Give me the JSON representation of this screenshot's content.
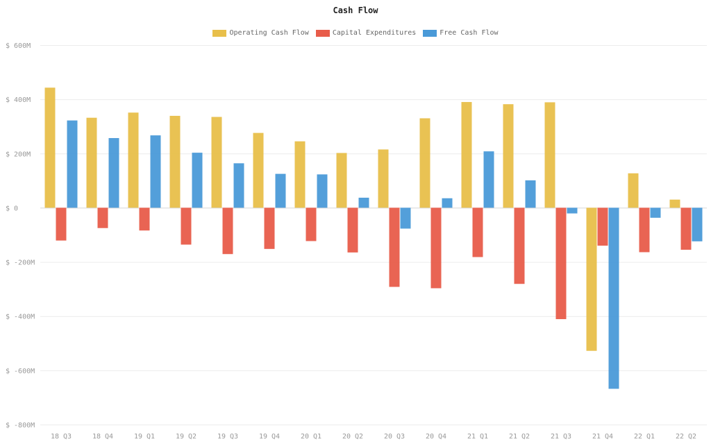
{
  "chart_data": {
    "type": "bar",
    "title": "Cash Flow",
    "xlabel": "",
    "ylabel": "",
    "categories": [
      "18 Q3",
      "18 Q4",
      "19 Q1",
      "19 Q2",
      "19 Q3",
      "19 Q4",
      "20 Q1",
      "20 Q2",
      "20 Q3",
      "20 Q4",
      "21 Q1",
      "21 Q2",
      "21 Q3",
      "21 Q4",
      "22 Q1",
      "22 Q2"
    ],
    "series": [
      {
        "name": "Operating Cash Flow",
        "color": "#e8bf4a",
        "values": [
          443,
          332,
          351,
          339,
          335,
          276,
          245,
          202,
          215,
          330,
          390,
          382,
          389,
          -528,
          127,
          30
        ]
      },
      {
        "name": "Capital Expenditures",
        "color": "#e85c4a",
        "values": [
          -121,
          -75,
          -84,
          -136,
          -171,
          -152,
          -123,
          -165,
          -292,
          -297,
          -182,
          -281,
          -411,
          -140,
          -164,
          -155
        ]
      },
      {
        "name": "Free Cash Flow",
        "color": "#4a9ad8",
        "values": [
          322,
          257,
          267,
          203,
          164,
          125,
          123,
          37,
          -77,
          35,
          208,
          101,
          -21,
          -668,
          -37,
          -124
        ]
      }
    ],
    "ylim": [
      -800,
      600
    ],
    "yticks": [
      600,
      400,
      200,
      0,
      -200,
      -400,
      -600,
      -800
    ],
    "ytick_labels": [
      "$ 600M",
      "$ 400M",
      "$ 200M",
      "$ 0",
      "$ -200M",
      "$ -400M",
      "$ -600M",
      "$ -800M"
    ],
    "grid": true,
    "legend_position": "top-center"
  }
}
